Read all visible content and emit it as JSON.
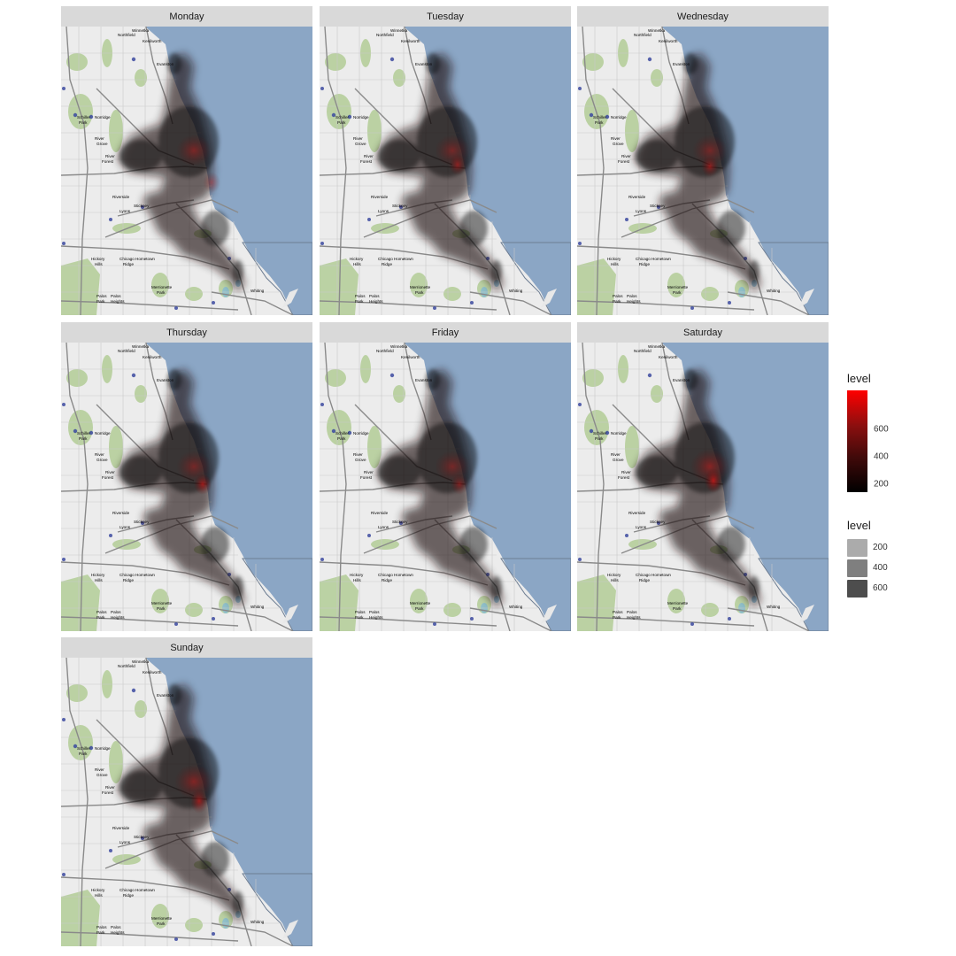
{
  "map": {
    "panels": [
      "Monday",
      "Tuesday",
      "Wednesday",
      "Thursday",
      "Friday",
      "Saturday",
      "Sunday"
    ],
    "basemap_labels": [
      "Winnetka",
      "Northfield",
      "Kenilworth",
      "Evanston",
      "Schiller Park",
      "Norridge",
      "River Grove",
      "River Forest",
      "Riverside",
      "Stickney",
      "Lyons",
      "Hickory Hills",
      "Chicago Ridge",
      "Hometown",
      "Merrionette Park",
      "Palos Park",
      "Palos Heights",
      "Whiting"
    ],
    "colors": {
      "water": "#8ba6c5",
      "land": "#ececec",
      "park": "#b6cf9c",
      "road": "#999999",
      "highway": "#5a5a5a",
      "density_low": "#000000",
      "density_high": "#ff0000"
    }
  },
  "legend_fill": {
    "title": "level",
    "ticks": [
      200,
      400,
      600
    ],
    "range": [
      0,
      750
    ]
  },
  "legend_alpha": {
    "title": "level",
    "items": [
      {
        "label": "200",
        "color": "#ababab"
      },
      {
        "label": "400",
        "color": "#7f7f7f"
      },
      {
        "label": "600",
        "color": "#4d4d4d"
      }
    ]
  }
}
